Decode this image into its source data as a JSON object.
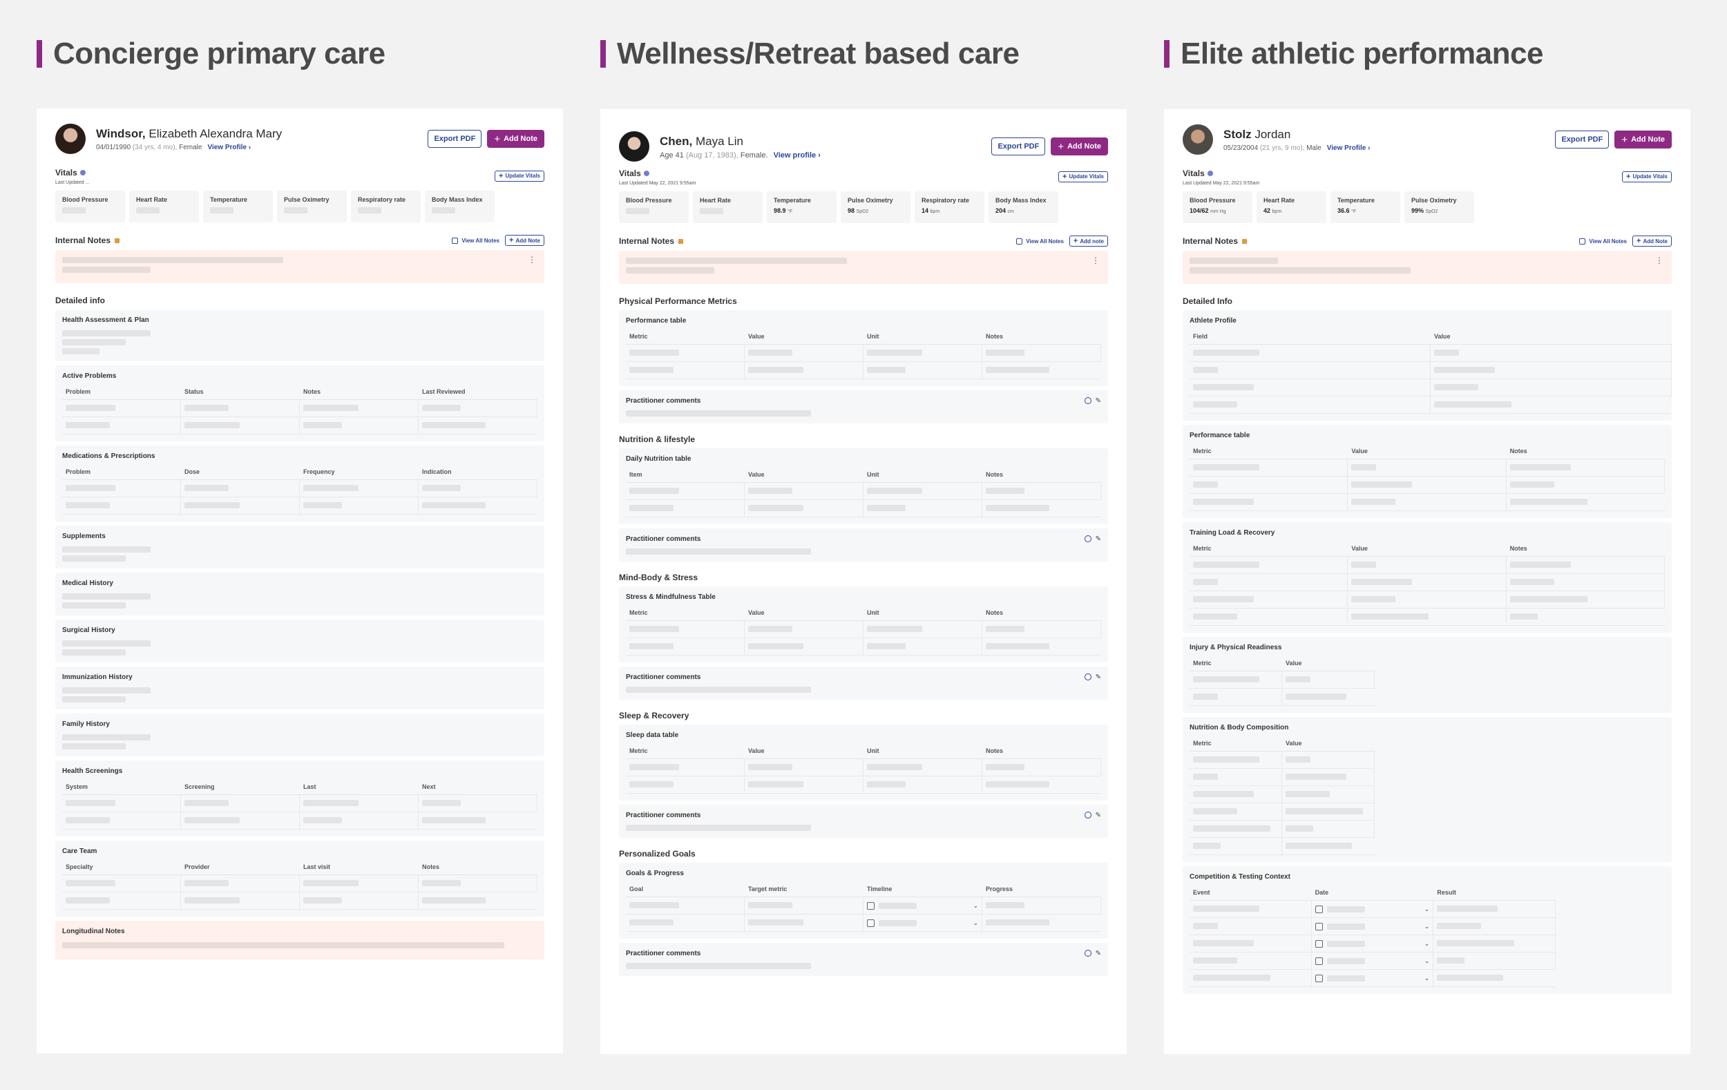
{
  "columns": [
    {
      "heading": "Concierge primary care",
      "patient": {
        "last": "Windsor,",
        "first": "Elizabeth Alexandra Mary",
        "dob": "04/01/1990",
        "age": "(34 yrs, 4 mo),",
        "sex": "Female",
        "view": "View Profile"
      },
      "export": "Export PDF",
      "add_note": "Add Note",
      "vitals": {
        "label": "Vitals",
        "updated": "Last Updated ...",
        "update_btn": "Update Vitals",
        "tiles": [
          {
            "t": "Blood Pressure",
            "v": ""
          },
          {
            "t": "Heart Rate",
            "v": ""
          },
          {
            "t": "Temperature",
            "v": ""
          },
          {
            "t": "Pulse Oximetry",
            "v": ""
          },
          {
            "t": "Respiratory rate",
            "v": ""
          },
          {
            "t": "Body Mass Index",
            "v": ""
          }
        ]
      },
      "notes": {
        "label": "Internal Notes",
        "view_all": "View All Notes",
        "add": "Add Note"
      },
      "section": "Detailed info",
      "longitudinal": "Longitudinal Notes"
    },
    {
      "heading": "Wellness/Retreat based care",
      "patient": {
        "last": "Chen,",
        "first": "Maya Lin",
        "age_line": "Age 41",
        "dob": "(Aug 17, 1983),",
        "sex": "Female.",
        "view": "View profile"
      },
      "export": "Export PDF",
      "add_note": "Add Note",
      "vitals": {
        "label": "Vitals",
        "updated": "Last Updated May 22, 2021 9:55am",
        "update_btn": "Update Vitals",
        "tiles": [
          {
            "t": "Blood Pressure",
            "v": "",
            "u": ""
          },
          {
            "t": "Heart Rate",
            "v": "",
            "u": ""
          },
          {
            "t": "Temperature",
            "v": "98.9",
            "u": "°F"
          },
          {
            "t": "Pulse Oximetry",
            "v": "98",
            "u": "SpO2"
          },
          {
            "t": "Respiratory rate",
            "v": "14",
            "u": "bpm"
          },
          {
            "t": "Body Mass Index",
            "v": "204",
            "u": "cm"
          }
        ]
      },
      "notes": {
        "label": "Internal Notes",
        "view_all": "View All Notes",
        "add": "Add note"
      },
      "comments": "Practitioner comments"
    },
    {
      "heading": "Elite athletic performance",
      "patient": {
        "last": "Stolz",
        "first": "Jordan",
        "dob": "05/23/2004",
        "age": "(21 yrs, 9 mo),",
        "sex": "Male",
        "view": "View Profile"
      },
      "export": "Export PDF",
      "add_note": "Add Note",
      "vitals": {
        "label": "Vitals",
        "updated": "Last Updated May 22, 2021 9:55am",
        "update_btn": "Update Vitals",
        "tiles": [
          {
            "t": "Blood Pressure",
            "v": "104/62",
            "u": "mm Hg"
          },
          {
            "t": "Heart Rate",
            "v": "42",
            "u": "bpm"
          },
          {
            "t": "Temperature",
            "v": "36.6",
            "u": "°F"
          },
          {
            "t": "Pulse Oximetry",
            "v": "99%",
            "u": "SpO2"
          }
        ]
      },
      "notes": {
        "label": "Internal Notes",
        "view_all": "View All Notes",
        "add": "Add Note"
      },
      "section": "Detailed Info"
    }
  ],
  "c1_panels": [
    {
      "title": "Health Assessment & Plan"
    },
    {
      "title": "Active Problems",
      "cols": [
        "Problem",
        "Status",
        "Notes",
        "Last Reviewed"
      ]
    },
    {
      "title": "Medications & Prescriptions",
      "cols": [
        "Problem",
        "Dose",
        "Frequency",
        "Indication"
      ]
    },
    {
      "title": "Supplements"
    },
    {
      "title": "Medical History"
    },
    {
      "title": "Surgical History"
    },
    {
      "title": "Immunization History"
    },
    {
      "title": "Family History"
    },
    {
      "title": "Health Screenings",
      "cols": [
        "System",
        "Screening",
        "Last",
        "Next"
      ]
    },
    {
      "title": "Care Team",
      "cols": [
        "Specialty",
        "Provider",
        "Last visit",
        "Notes"
      ]
    }
  ],
  "c2_sections": [
    {
      "section": "Physical Performance Metrics",
      "table": "Performance table",
      "cols": [
        "Metric",
        "Value",
        "Unit",
        "Notes"
      ]
    },
    {
      "section": "Nutrition & lifestyle",
      "table": "Daily Nutrition table",
      "cols": [
        "Item",
        "Value",
        "Unit",
        "Notes"
      ]
    },
    {
      "section": "Mind-Body & Stress",
      "table": "Stress & Mindfulness Table",
      "cols": [
        "Metric",
        "Value",
        "Unit",
        "Notes"
      ]
    },
    {
      "section": "Sleep & Recovery",
      "table": "Sleep data table",
      "cols": [
        "Metric",
        "Value",
        "Unit",
        "Notes"
      ]
    },
    {
      "section": "Personalized Goals",
      "table": "Goals & Progress",
      "cols": [
        "Goal",
        "Target metric",
        "Timeline",
        "Progress"
      ]
    }
  ],
  "c3_panels": [
    {
      "title": "Athlete Profile",
      "cols": [
        "Field",
        "Value"
      ]
    },
    {
      "title": "Performance table",
      "cols": [
        "Metric",
        "Value",
        "Notes"
      ]
    },
    {
      "title": "Training Load & Recovery",
      "cols": [
        "Metric",
        "Value",
        "Notes"
      ]
    },
    {
      "title": "Injury & Physical Readiness",
      "cols": [
        "Metric",
        "Value"
      ]
    },
    {
      "title": "Nutrition & Body Composition",
      "cols": [
        "Metric",
        "Value"
      ]
    },
    {
      "title": "Competition & Testing Context",
      "cols": [
        "Event",
        "Date",
        "Result"
      ]
    }
  ],
  "colors": {
    "accent": "#8e2a84",
    "link": "#2d4596",
    "note_bg": "#fff0eb"
  }
}
